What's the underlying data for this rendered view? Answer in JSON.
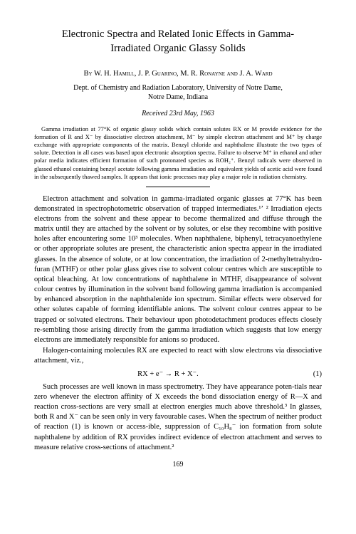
{
  "title_line1": "Electronic Spectra and Related Ionic Effects in Gamma-",
  "title_line2": "Irradiated Organic Glassy Solids",
  "by": "By ",
  "authors": "W. H. Hamill, J. P. Guarino, M. R. Ronayne and J. A. Ward",
  "affil_line1": "Dept. of Chemistry and Radiation Laboratory, University of Notre Dame,",
  "affil_line2": "Notre Dame, Indiana",
  "received": "Received 23rd May, 1963",
  "abstract": "Gamma irradiation at 77°K of organic glassy solids which contain solutes RX or M provide evidence for the formation of R and X⁻ by dissociative electron attachment, M⁻ by simple electron attachment and M⁺ by charge exchange with appropriate components of the matrix. Benzyl chloride and naphthalene illustrate the two types of solute. Detection in all cases was based upon electronic absorption spectra. Failure to observe M⁺ in ethanol and other polar media indicates efficient formation of such protonated species as ROH₂⁺. Benzyl radicals were observed in glassed ethanol containing benzyl acetate following gamma irradiation and equivalent yields of acetic acid were found in the subsequently thawed samples. It appears that ionic processes may play a major role in radiation chemistry.",
  "p1": "Electron attachment and solvation in gamma-irradiated organic glasses at 77°K has been demonstrated in spectrophotometric observation of trapped intermediates.¹ʼ ² Irradiation ejects electrons from the solvent and these appear to become thermalized and diffuse through the matrix until they are attached by the solvent or by solutes, or else they recombine with positive holes after encountering some 10³ molecules. When naphthalene, biphenyl, tetracyanoethylene or other appropriate solutes are present, the characteristic anion spectra appear in the irradiated glasses. In the absence of solute, or at low concentration, the irradiation of 2-methyltetrahydro-furan (MTHF) or other polar glass gives rise to solvent colour centres which are susceptible to optical bleaching. At low concentrations of naphthalene in MTHF, disappearance of solvent colour centres by illumination in the solvent band following gamma irradiation is accompanied by enhanced absorption in the naphthalenide ion spectrum. Similar effects were observed for other solutes capable of forming identifiable anions. The solvent colour centres appear to be trapped or solvated electrons. Their behaviour upon photodetachment produces effects closely re-sembling those arising directly from the gamma irradiation which suggests that low energy electrons are immediately responsible for anions so produced.",
  "p2": "Halogen-containing molecules RX are expected to react with slow electrons via dissociative attachment, viz.,",
  "eq1": "RX + e⁻ → R + X⁻.",
  "eq1_num": "(1)",
  "p3": "Such processes are well known in mass spectrometry. They have appearance poten-tials near zero whenever the electron affinity of X exceeds the bond dissociation energy of R—X and reaction cross-sections are very small at electron energies much above threshold.³ In glasses, both R and X⁻ can be seen only in very favourable cases. When the spectrum of neither product of reaction (1) is known or access-ible, suppression of C₁₀H₈⁻ ion formation from solute naphthalene by addition of RX provides indirect evidence of electron attachment and serves to measure relative cross-sections of attachment.²",
  "pagenum": "169"
}
